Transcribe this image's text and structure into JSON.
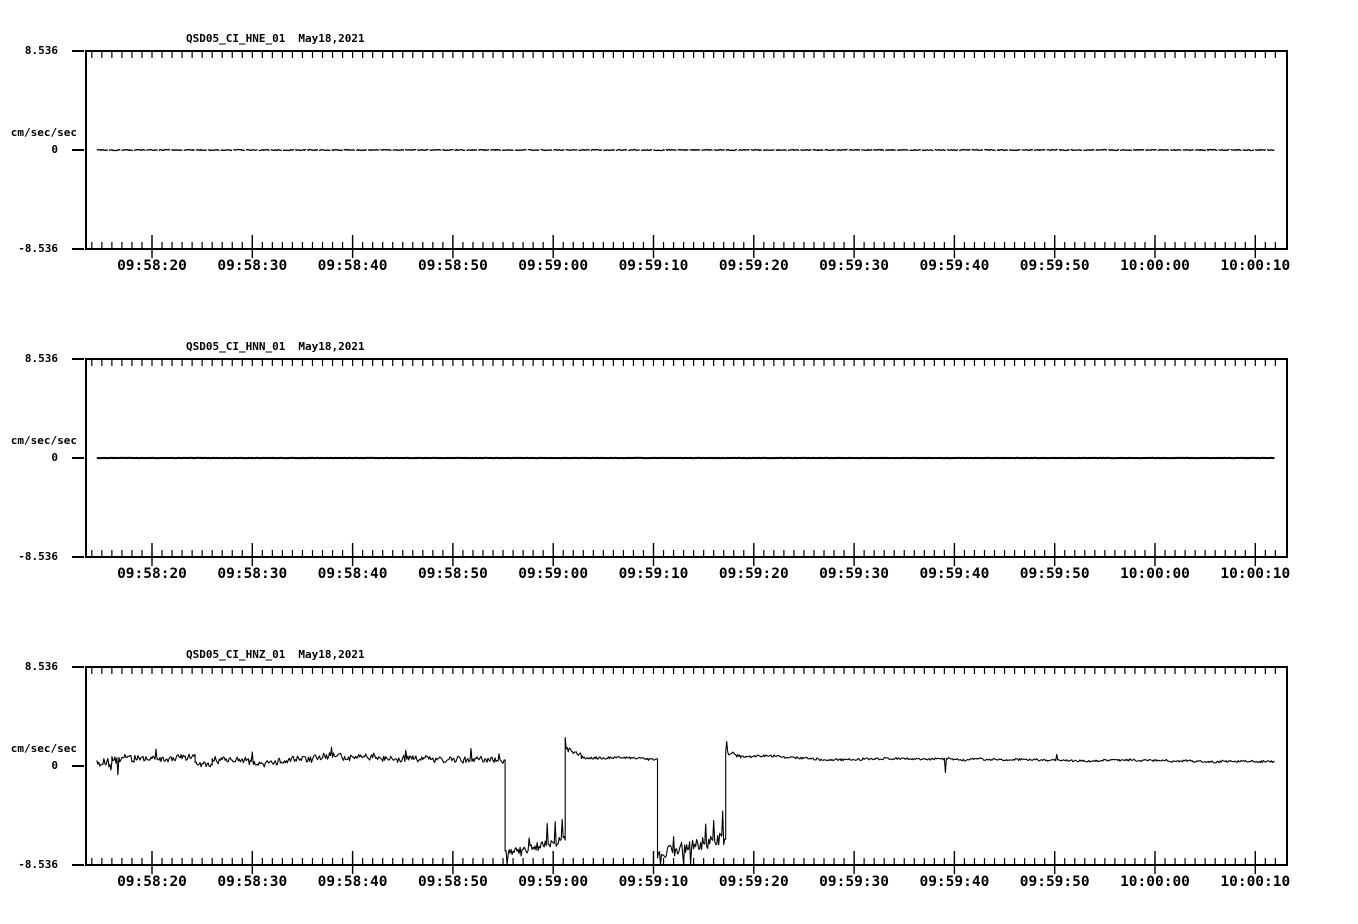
{
  "figure": {
    "background": "#ffffff",
    "trace_color": "#000000"
  },
  "chart_data": [
    {
      "type": "line",
      "title": "QSD05_CI_HNE_01",
      "date": "May18,2021",
      "ylabel": "cm/sec/sec",
      "ylim": [
        -8.536,
        8.536
      ],
      "yticks": [
        8.536,
        0,
        -8.536
      ],
      "ytick_top": "8.536",
      "ytick_zero": "0",
      "ytick_bottom": "-8.536",
      "xtick_labels": [
        "09:58:20",
        "09:58:30",
        "09:58:40",
        "09:58:50",
        "09:59:00",
        "09:59:10",
        "09:59:20",
        "09:59:30",
        "09:59:40",
        "09:59:50",
        "10:00:00",
        "10:00:10"
      ],
      "grid": false,
      "legend": "none",
      "segments": [
        {
          "t0": 14.5,
          "t1": 131.9,
          "base": 0,
          "noise": 0.045
        }
      ]
    },
    {
      "type": "line",
      "title": "QSD05_CI_HNN_01",
      "date": "May18,2021",
      "ylabel": "cm/sec/sec",
      "ylim": [
        -8.536,
        8.536
      ],
      "yticks": [
        8.536,
        0,
        -8.536
      ],
      "ytick_top": "8.536",
      "ytick_zero": "0",
      "ytick_bottom": "-8.536",
      "xtick_labels": [
        "09:58:20",
        "09:58:30",
        "09:58:40",
        "09:58:50",
        "09:59:00",
        "09:59:10",
        "09:59:20",
        "09:59:30",
        "09:59:40",
        "09:59:50",
        "10:00:00",
        "10:00:10"
      ],
      "grid": false,
      "legend": "none",
      "segments": [
        {
          "t0": 14.5,
          "t1": 131.9,
          "base": 0,
          "noise": 0.012
        }
      ]
    },
    {
      "type": "line",
      "title": "QSD05_CI_HNZ_01",
      "date": "May18,2021",
      "ylabel": "cm/sec/sec",
      "ylim": [
        -8.536,
        8.536
      ],
      "yticks": [
        8.536,
        0,
        -8.536
      ],
      "ytick_top": "8.536",
      "ytick_zero": "0",
      "ytick_bottom": "-8.536",
      "xtick_labels": [
        "09:58:20",
        "09:58:30",
        "09:58:40",
        "09:58:50",
        "09:59:00",
        "09:59:10",
        "09:59:20",
        "09:59:30",
        "09:59:40",
        "09:59:50",
        "10:00:00",
        "10:00:10"
      ],
      "grid": false,
      "legend": "none",
      "segments": [
        {
          "t0": 14.5,
          "t1": 16.0,
          "base": 0.15,
          "noise": 0.55
        },
        {
          "t0": 16.0,
          "t1": 24.3,
          "base": 0.5,
          "noise": 0.3,
          "walk": 0.1,
          "spikes": [
            {
              "t": 16.6,
              "v": -0.75
            },
            {
              "t": 20.4,
              "v": 1.45
            }
          ]
        },
        {
          "t0": 24.3,
          "t1": 26.0,
          "base": 0.15,
          "noise": 0.25
        },
        {
          "t0": 26.0,
          "t1": 55.2,
          "base": 0.55,
          "noise": 0.28,
          "walk": 0.1,
          "spikes": [
            {
              "t": 30.0,
              "v": 1.2
            },
            {
              "t": 37.9,
              "v": 1.6
            },
            {
              "t": 45.3,
              "v": 1.35
            },
            {
              "t": 51.8,
              "v": 1.5
            },
            {
              "t": 54.6,
              "v": 1.05
            }
          ]
        },
        {
          "t0": 55.2,
          "t1": 61.2,
          "base": -7.7,
          "base_end": -6.4,
          "noise": 0.42,
          "spikes": [
            {
              "t": 55.4,
              "v": -8.5
            },
            {
              "t": 57.6,
              "v": -6.2
            },
            {
              "t": 59.4,
              "v": -4.95
            },
            {
              "t": 60.2,
              "v": -4.8
            },
            {
              "t": 60.9,
              "v": -4.6
            }
          ]
        },
        {
          "t0": 61.2,
          "t1": 62.8,
          "base": 1.6,
          "base_end": 0.85,
          "noise": 0.25,
          "spikes": [
            {
              "t": 61.25,
              "v": 2.45
            }
          ]
        },
        {
          "t0": 62.8,
          "t1": 70.4,
          "base": 0.75,
          "base_end": 0.6,
          "noise": 0.1,
          "walk": 0.05
        },
        {
          "t0": 70.4,
          "t1": 77.2,
          "base": -7.6,
          "base_end": -6.2,
          "noise": 0.55,
          "spikes": [
            {
              "t": 70.7,
              "v": -8.5
            },
            {
              "t": 72.0,
              "v": -6.1
            },
            {
              "t": 73.0,
              "v": -8.5
            },
            {
              "t": 73.7,
              "v": -8.45
            },
            {
              "t": 75.2,
              "v": -5.0
            },
            {
              "t": 76.0,
              "v": -4.7
            },
            {
              "t": 76.9,
              "v": -3.9
            }
          ]
        },
        {
          "t0": 77.2,
          "t1": 78.7,
          "base": 1.15,
          "base_end": 0.85,
          "noise": 0.2,
          "spikes": [
            {
              "t": 77.3,
              "v": 2.1
            }
          ]
        },
        {
          "t0": 78.7,
          "t1": 131.9,
          "base": 0.8,
          "base_end": 0.45,
          "noise": 0.09,
          "walk": 0.05,
          "spikes": [
            {
              "t": 99.1,
              "v": -0.55
            },
            {
              "t": 110.2,
              "v": 1.0
            }
          ]
        }
      ]
    }
  ]
}
